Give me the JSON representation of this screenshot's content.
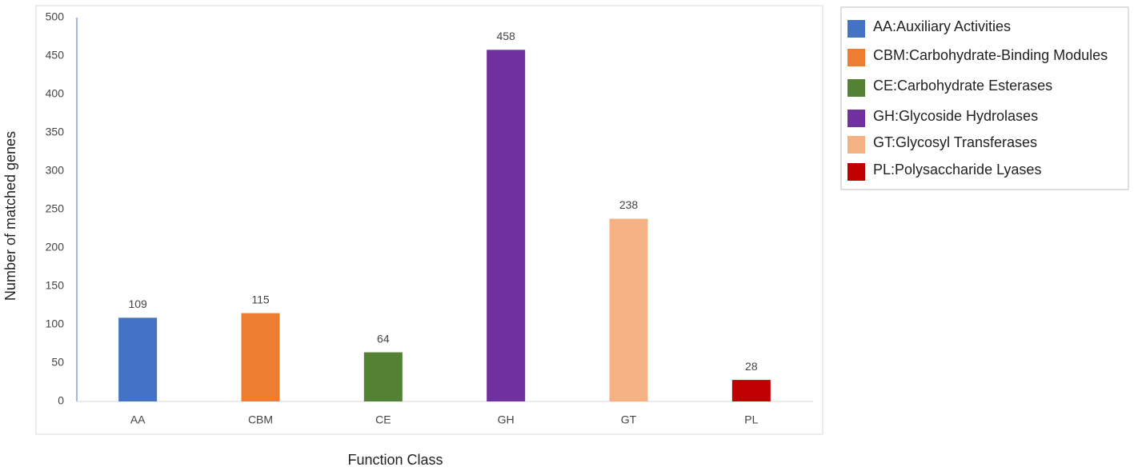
{
  "chart_data": {
    "type": "bar",
    "categories": [
      "AA",
      "CBM",
      "CE",
      "GH",
      "GT",
      "PL"
    ],
    "values": [
      109,
      115,
      64,
      458,
      238,
      28
    ],
    "colors": [
      "#4472c4",
      "#ed7d31",
      "#548235",
      "#7030a0",
      "#f4b183",
      "#c00000"
    ],
    "legend": [
      "AA:Auxiliary Activities",
      "CBM:Carbohydrate-Binding Modules",
      "CE:Carbohydrate Esterases",
      "GH:Glycoside Hydrolases",
      "GT:Glycosyl Transferases",
      "PL:Polysaccharide Lyases"
    ],
    "x_label": "Function Class",
    "y_label": "Number of matched genes",
    "ylim": [
      0,
      500
    ],
    "yticks": [
      0,
      50,
      100,
      150,
      200,
      250,
      300,
      350,
      400,
      450,
      500
    ],
    "grid": false
  }
}
